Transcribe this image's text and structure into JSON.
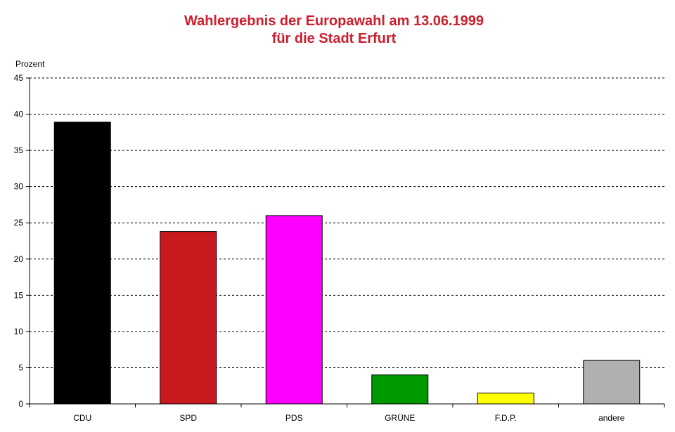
{
  "chart_data": {
    "type": "bar",
    "title": "Wahlergebnis der Europawahl am 13.06.1999",
    "subtitle": "für die Stadt Erfurt",
    "xlabel": "",
    "ylabel": "Prozent",
    "ylim": [
      0,
      45
    ],
    "yticks": [
      0,
      5,
      10,
      15,
      20,
      25,
      30,
      35,
      40,
      45
    ],
    "grid": true,
    "categories": [
      "CDU",
      "SPD",
      "PDS",
      "GRÜNE",
      "F.D.P.",
      "andere"
    ],
    "values": [
      38.9,
      23.8,
      26.0,
      4.0,
      1.5,
      6.0
    ],
    "colors": [
      "#000000",
      "#c8191f",
      "#ff00ff",
      "#009900",
      "#ffff00",
      "#b0b0b0"
    ]
  }
}
